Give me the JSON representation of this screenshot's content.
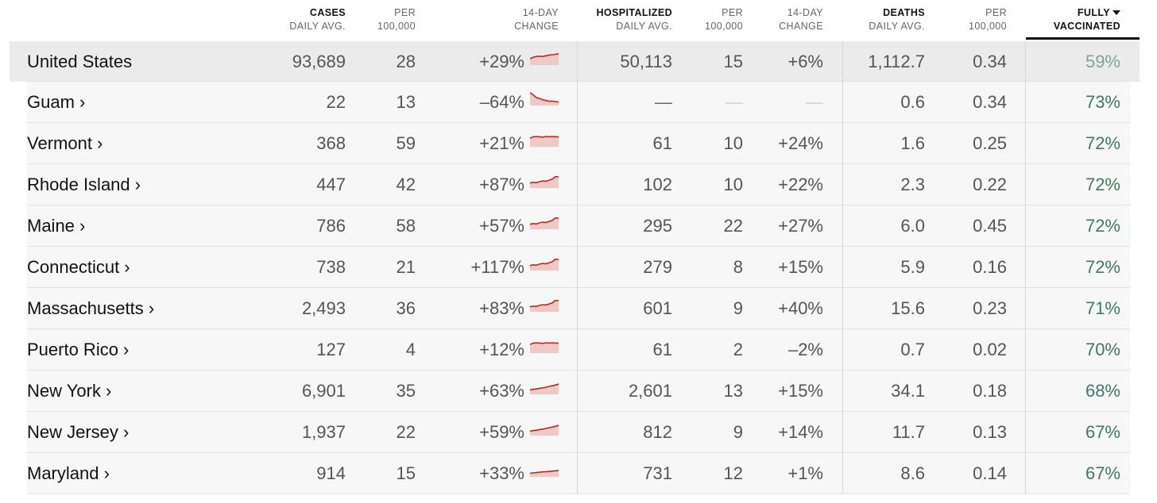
{
  "header": {
    "cases": [
      "CASES",
      "DAILY AVG."
    ],
    "cases_per": [
      "PER",
      "100,000"
    ],
    "cases_change": [
      "14-DAY",
      "CHANGE"
    ],
    "hosp": [
      "HOSPITALIZED",
      "DAILY AVG."
    ],
    "hosp_per": [
      "PER",
      "100,000"
    ],
    "hosp_change": [
      "14-DAY",
      "CHANGE"
    ],
    "deaths": [
      "DEATHS",
      "DAILY AVG."
    ],
    "deaths_per": [
      "PER",
      "100,000"
    ],
    "vacc": [
      "FULLY",
      "VACCINATED"
    ],
    "sort_icon": "caret-down-icon"
  },
  "rows": [
    {
      "name": "United States",
      "cases": "93,689",
      "cases_per": "28",
      "cases_change": "+29%",
      "spark": "rising-flat",
      "hosp": "50,113",
      "hosp_per": "15",
      "hosp_change": "+6%",
      "deaths": "1,112.7",
      "deaths_per": "0.34",
      "vacc": "59%"
    },
    {
      "name": "Guam ›",
      "cases": "22",
      "cases_per": "13",
      "cases_change": "–64%",
      "spark": "falling",
      "hosp": "—",
      "hosp_per": "—",
      "hosp_change": "—",
      "deaths": "0.6",
      "deaths_per": "0.34",
      "vacc": "73%"
    },
    {
      "name": "Vermont ›",
      "cases": "368",
      "cases_per": "59",
      "cases_change": "+21%",
      "spark": "flat-high",
      "hosp": "61",
      "hosp_per": "10",
      "hosp_change": "+24%",
      "deaths": "1.6",
      "deaths_per": "0.25",
      "vacc": "72%"
    },
    {
      "name": "Rhode Island ›",
      "cases": "447",
      "cases_per": "42",
      "cases_change": "+87%",
      "spark": "rising",
      "hosp": "102",
      "hosp_per": "10",
      "hosp_change": "+22%",
      "deaths": "2.3",
      "deaths_per": "0.22",
      "vacc": "72%"
    },
    {
      "name": "Maine ›",
      "cases": "786",
      "cases_per": "58",
      "cases_change": "+57%",
      "spark": "rising",
      "hosp": "295",
      "hosp_per": "22",
      "hosp_change": "+27%",
      "deaths": "6.0",
      "deaths_per": "0.45",
      "vacc": "72%"
    },
    {
      "name": "Connecticut ›",
      "cases": "738",
      "cases_per": "21",
      "cases_change": "+117%",
      "spark": "rising",
      "hosp": "279",
      "hosp_per": "8",
      "hosp_change": "+15%",
      "deaths": "5.9",
      "deaths_per": "0.16",
      "vacc": "72%"
    },
    {
      "name": "Massachusetts ›",
      "cases": "2,493",
      "cases_per": "36",
      "cases_change": "+83%",
      "spark": "rising",
      "hosp": "601",
      "hosp_per": "9",
      "hosp_change": "+40%",
      "deaths": "15.6",
      "deaths_per": "0.23",
      "vacc": "71%"
    },
    {
      "name": "Puerto Rico ›",
      "cases": "127",
      "cases_per": "4",
      "cases_change": "+12%",
      "spark": "flat-high",
      "hosp": "61",
      "hosp_per": "2",
      "hosp_change": "–2%",
      "deaths": "0.7",
      "deaths_per": "0.02",
      "vacc": "70%"
    },
    {
      "name": "New York ›",
      "cases": "6,901",
      "cases_per": "35",
      "cases_change": "+63%",
      "spark": "rising-gentle",
      "hosp": "2,601",
      "hosp_per": "13",
      "hosp_change": "+15%",
      "deaths": "34.1",
      "deaths_per": "0.18",
      "vacc": "68%"
    },
    {
      "name": "New Jersey ›",
      "cases": "1,937",
      "cases_per": "22",
      "cases_change": "+59%",
      "spark": "rising-gentle",
      "hosp": "812",
      "hosp_per": "9",
      "hosp_change": "+14%",
      "deaths": "11.7",
      "deaths_per": "0.13",
      "vacc": "67%"
    },
    {
      "name": "Maryland ›",
      "cases": "914",
      "cases_per": "15",
      "cases_change": "+33%",
      "spark": "rising-low",
      "hosp": "731",
      "hosp_per": "12",
      "hosp_change": "+1%",
      "deaths": "8.6",
      "deaths_per": "0.14",
      "vacc": "67%"
    }
  ],
  "colors": {
    "spark_line": "#b52b22",
    "spark_fill": "#f1c9c4",
    "vacc": "#3e7b62",
    "vacc_us": "#7fa695"
  }
}
